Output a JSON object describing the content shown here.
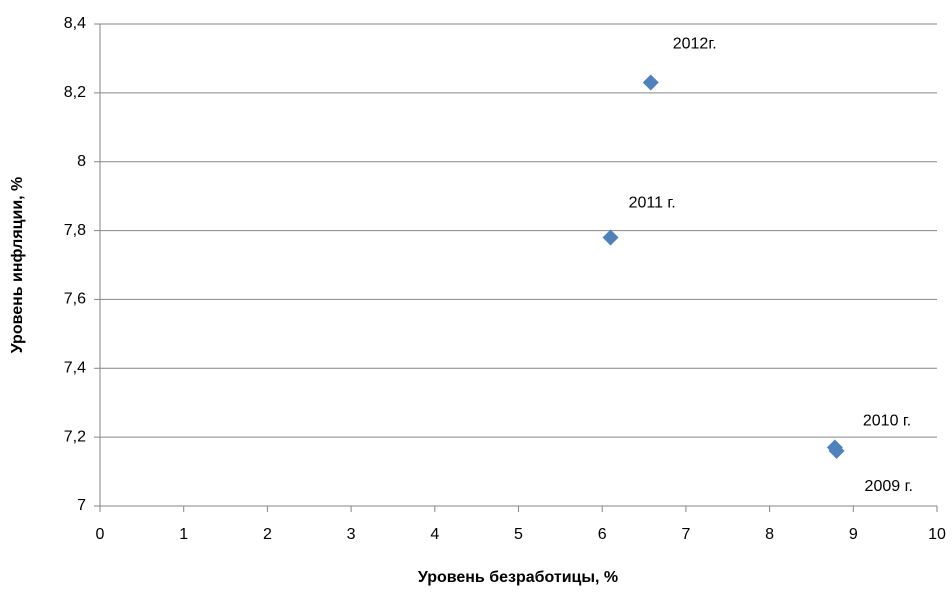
{
  "chart_data": {
    "type": "scatter",
    "x_label": "Уровень безработицы, %",
    "y_label": "Уровень инфляции, %",
    "series": [
      {
        "color": "#4f81bd",
        "x": [
          8.8,
          8.78,
          6.1,
          6.58
        ],
        "values": [
          7.16,
          7.17,
          7.78,
          8.23
        ],
        "point_labels": [
          "2009 г.",
          "2010 г.",
          "2011 г.",
          "2012г."
        ]
      }
    ],
    "xlim": [
      0,
      10
    ],
    "xticks": [
      0,
      1,
      2,
      3,
      4,
      5,
      6,
      7,
      8,
      9,
      10
    ],
    "ylim": [
      7,
      8.4
    ],
    "yticks": [
      7,
      {
        "value": 7.2,
        "label": "7,2"
      },
      {
        "value": 7.4,
        "label": "7,4"
      },
      {
        "value": 7.6,
        "label": "7,6"
      },
      {
        "value": 7.8,
        "label": "7,8"
      },
      8,
      {
        "value": 8.2,
        "label": "8,2"
      },
      {
        "value": 8.4,
        "label": "8,4"
      }
    ],
    "grid": true
  }
}
